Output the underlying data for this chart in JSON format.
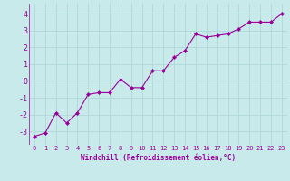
{
  "x": [
    0,
    1,
    2,
    3,
    4,
    5,
    6,
    7,
    8,
    9,
    10,
    11,
    12,
    13,
    14,
    15,
    16,
    17,
    18,
    19,
    20,
    21,
    22,
    23
  ],
  "y": [
    -3.3,
    -3.1,
    -1.9,
    -2.5,
    -1.9,
    -0.8,
    -0.7,
    -0.7,
    0.1,
    -0.4,
    -0.4,
    0.6,
    0.6,
    1.4,
    1.8,
    2.8,
    2.6,
    2.7,
    2.8,
    3.1,
    3.5,
    3.5,
    3.5,
    4.0
  ],
  "line_color": "#990099",
  "marker": "D",
  "markersize": 2.0,
  "linewidth": 0.8,
  "bg_color": "#c8eaea",
  "grid_color": "#b0d8d8",
  "xlabel": "Windchill (Refroidissement éolien,°C)",
  "xlabel_color": "#990099",
  "tick_color": "#990099",
  "xlim": [
    -0.5,
    23.5
  ],
  "ylim": [
    -3.8,
    4.6
  ],
  "yticks": [
    -3,
    -2,
    -1,
    0,
    1,
    2,
    3,
    4
  ],
  "xticks": [
    0,
    1,
    2,
    3,
    4,
    5,
    6,
    7,
    8,
    9,
    10,
    11,
    12,
    13,
    14,
    15,
    16,
    17,
    18,
    19,
    20,
    21,
    22,
    23
  ],
  "tick_fontsize": 5.0,
  "xlabel_fontsize": 5.5
}
